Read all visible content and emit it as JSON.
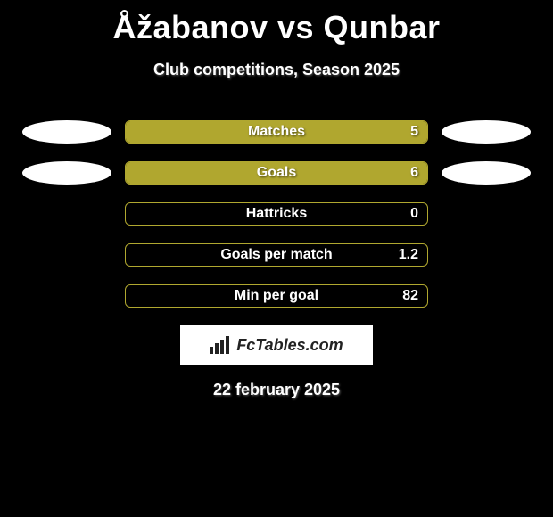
{
  "title": "Åžabanov vs Qunbar",
  "subtitle": "Club competitions, Season 2025",
  "date": "22 february 2025",
  "brand": {
    "text": "FcTables.com"
  },
  "palette": {
    "bar_fill": "#b0a72f",
    "bar_border": "#b0a72f",
    "container_bg": "#000000",
    "text": "#ffffff",
    "brand_bg": "#ffffff",
    "brand_text": "#222222"
  },
  "stats": [
    {
      "label": "Matches",
      "value_text": "5",
      "fill_pct": 100,
      "left_oval": true,
      "right_oval": true
    },
    {
      "label": "Goals",
      "value_text": "6",
      "fill_pct": 100,
      "left_oval": true,
      "right_oval": true
    },
    {
      "label": "Hattricks",
      "value_text": "0",
      "fill_pct": 0,
      "left_oval": false,
      "right_oval": false
    },
    {
      "label": "Goals per match",
      "value_text": "1.2",
      "fill_pct": 0,
      "left_oval": false,
      "right_oval": false
    },
    {
      "label": "Min per goal",
      "value_text": "82",
      "fill_pct": 0,
      "left_oval": false,
      "right_oval": false
    }
  ],
  "typography": {
    "title_fontsize": 36,
    "subtitle_fontsize": 18,
    "stat_label_fontsize": 16,
    "date_fontsize": 18
  }
}
